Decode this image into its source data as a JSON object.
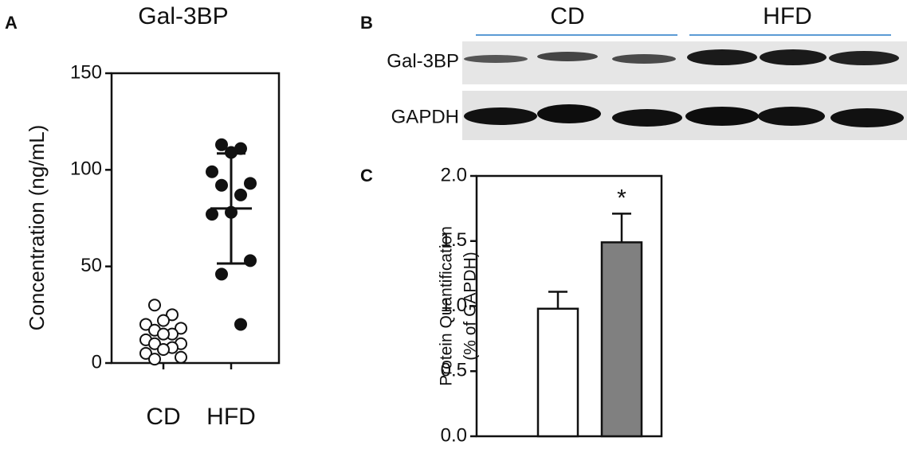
{
  "panel_labels": [
    "A",
    "B",
    "C"
  ],
  "blot": {
    "groups": [
      "CD",
      "HFD"
    ],
    "rows": [
      "Gal-3BP",
      "GAPDH"
    ]
  },
  "chart_data": [
    {
      "type": "dot-plot",
      "title": "Gal-3BP",
      "y_label": "Concentration (ng/mL)",
      "categories": [
        "CD",
        "HFD"
      ],
      "points": [
        [
          30,
          25,
          22,
          20,
          18,
          17,
          15,
          15,
          12,
          10,
          10,
          8,
          7,
          5,
          3,
          2
        ],
        [
          113,
          111,
          109,
          99,
          93,
          92,
          87,
          78,
          77,
          53,
          46,
          20
        ]
      ],
      "error_bars": [
        null,
        {
          "mean": 80,
          "sd": 28.5
        }
      ],
      "ylim": [
        0,
        150
      ],
      "yticks": [
        0,
        50,
        100,
        150
      ]
    },
    {
      "type": "bar",
      "y_label": [
        "Protein Quantification",
        "(% of GAPDH)"
      ],
      "values": [
        0.98,
        1.49
      ],
      "errors": [
        0.13,
        0.22
      ],
      "colors": [
        "#ffffff",
        "#808080"
      ],
      "annotations": [
        null,
        "*"
      ],
      "ylim": [
        0,
        2
      ],
      "yticks": [
        {
          "value": 0,
          "label": "0.0"
        },
        0.5,
        {
          "value": 1,
          "label": "1.0"
        },
        1.5,
        {
          "value": 2,
          "label": "2.0"
        }
      ]
    }
  ]
}
